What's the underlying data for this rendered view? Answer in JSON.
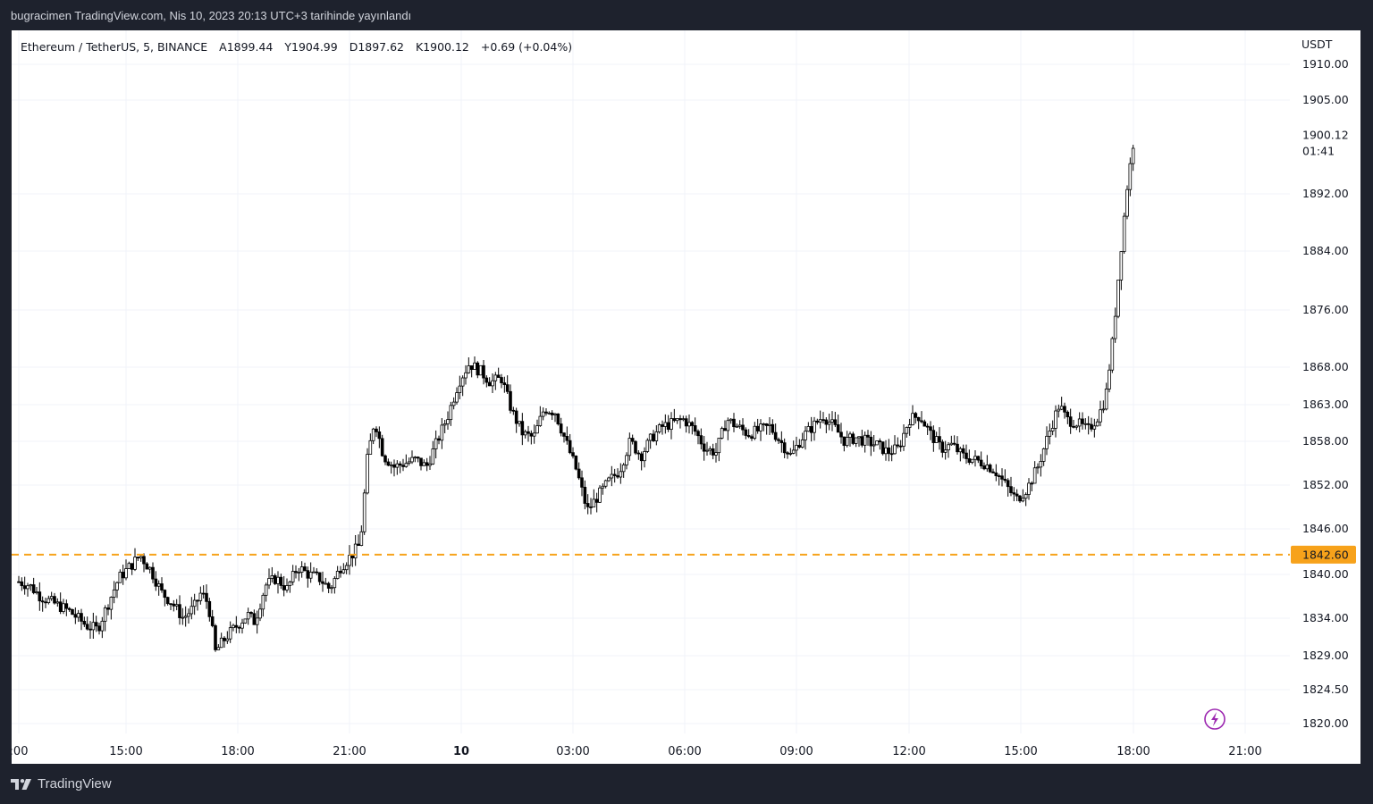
{
  "caption": "bugracimen TradingView.com, Nis 10, 2023 20:13 UTC+3 tarihinde yayınlandı",
  "brand": "TradingView",
  "legend": {
    "symbol": "Ethereum / TetherUS, 5, BINANCE",
    "open": "A1899.44",
    "high": "Y1904.99",
    "low": "D1897.62",
    "close": "K1900.12",
    "change": "+0.69 (+0.04%)"
  },
  "colors": {
    "background": "#1e222d",
    "panel": "#ffffff",
    "candle": "#000000",
    "level_line": "#f7a21b",
    "alert_icon": "#9c27b0"
  },
  "chart_data": {
    "type": "candlestick",
    "title": "Ethereum / TetherUS, 5, BINANCE",
    "currency_label": "USDT",
    "y_axis": {
      "ticks": [
        1910.0,
        1905.0,
        1892.0,
        1884.0,
        1876.0,
        1868.0,
        1863.0,
        1858.0,
        1852.0,
        1846.0,
        1840.0,
        1834.0,
        1829.0,
        1824.5,
        1820.0
      ],
      "tick_labels": [
        "1910.00",
        "1905.00",
        "1892.00",
        "1884.00",
        "1876.00",
        "1868.00",
        "1863.00",
        "1858.00",
        "1852.00",
        "1846.00",
        "1840.00",
        "1834.00",
        "1829.00",
        "1824.50",
        "1820.00"
      ],
      "scale": "log"
    },
    "x_axis": {
      "tick_labels": [
        ":00",
        "15:00",
        "18:00",
        "21:00",
        "10",
        "03:00",
        "06:00",
        "09:00",
        "12:00",
        "15:00",
        "18:00",
        "21:00"
      ],
      "bold_label": "10",
      "range_hours": [
        12.0,
        21.0
      ]
    },
    "current_price": {
      "value": "1900.12",
      "countdown": "01:41"
    },
    "level_line": {
      "value": 1842.6,
      "label": "1842.60",
      "style": "dashed"
    },
    "grid": true,
    "price_path": [
      [
        12.0,
        1839.0
      ],
      [
        12.3,
        1838.5
      ],
      [
        12.6,
        1837.0
      ],
      [
        13.0,
        1836.0
      ],
      [
        13.4,
        1835.0
      ],
      [
        13.9,
        1833.0
      ],
      [
        14.2,
        1832.5
      ],
      [
        14.5,
        1836.0
      ],
      [
        14.8,
        1839.5
      ],
      [
        15.1,
        1841.0
      ],
      [
        15.4,
        1842.5
      ],
      [
        15.7,
        1840.5
      ],
      [
        16.0,
        1837.5
      ],
      [
        16.3,
        1836.0
      ],
      [
        16.6,
        1834.0
      ],
      [
        16.9,
        1835.5
      ],
      [
        17.1,
        1837.5
      ],
      [
        17.3,
        1836.0
      ],
      [
        17.5,
        1829.5
      ],
      [
        17.8,
        1831.5
      ],
      [
        18.1,
        1833.0
      ],
      [
        18.4,
        1834.5
      ],
      [
        18.6,
        1833.5
      ],
      [
        18.9,
        1838.5
      ],
      [
        19.2,
        1839.5
      ],
      [
        19.5,
        1838.0
      ],
      [
        19.8,
        1841.0
      ],
      [
        20.1,
        1840.0
      ],
      [
        20.4,
        1839.5
      ],
      [
        20.7,
        1838.0
      ],
      [
        21.0,
        1841.0
      ],
      [
        21.3,
        1842.5
      ],
      [
        21.55,
        1844.0
      ],
      [
        21.75,
        1855.5
      ],
      [
        21.95,
        1861.0
      ],
      [
        22.2,
        1856.0
      ],
      [
        22.5,
        1854.5
      ],
      [
        22.8,
        1855.0
      ],
      [
        23.1,
        1855.5
      ],
      [
        23.4,
        1854.5
      ],
      [
        23.7,
        1858.0
      ],
      [
        24.0,
        1861.5
      ],
      [
        24.3,
        1866.0
      ],
      [
        24.6,
        1868.5
      ],
      [
        24.9,
        1867.5
      ],
      [
        25.2,
        1866.0
      ],
      [
        25.5,
        1866.5
      ],
      [
        25.8,
        1862.0
      ],
      [
        26.1,
        1859.0
      ],
      [
        26.4,
        1858.5
      ],
      [
        26.7,
        1862.5
      ],
      [
        27.0,
        1862.0
      ],
      [
        27.3,
        1858.0
      ],
      [
        27.6,
        1854.0
      ],
      [
        27.9,
        1848.5
      ],
      [
        28.2,
        1850.5
      ],
      [
        28.5,
        1852.5
      ],
      [
        28.8,
        1854.0
      ],
      [
        29.1,
        1858.0
      ],
      [
        29.4,
        1856.0
      ],
      [
        29.7,
        1858.5
      ],
      [
        30.0,
        1860.0
      ],
      [
        30.3,
        1860.5
      ],
      [
        30.6,
        1861.0
      ],
      [
        30.9,
        1859.5
      ],
      [
        31.2,
        1857.0
      ],
      [
        31.5,
        1856.5
      ],
      [
        31.8,
        1861.0
      ],
      [
        32.1,
        1860.0
      ],
      [
        32.4,
        1859.0
      ],
      [
        32.7,
        1859.5
      ],
      [
        33.0,
        1860.0
      ],
      [
        33.3,
        1858.0
      ],
      [
        33.6,
        1856.0
      ],
      [
        33.9,
        1858.5
      ],
      [
        34.2,
        1860.0
      ],
      [
        34.5,
        1861.5
      ],
      [
        34.8,
        1860.0
      ],
      [
        35.1,
        1858.0
      ],
      [
        35.4,
        1858.5
      ],
      [
        35.7,
        1858.0
      ],
      [
        36.0,
        1857.5
      ],
      [
        36.3,
        1856.5
      ],
      [
        36.6,
        1857.0
      ],
      [
        36.9,
        1861.0
      ],
      [
        37.2,
        1861.5
      ],
      [
        37.5,
        1859.0
      ],
      [
        37.8,
        1857.0
      ],
      [
        38.1,
        1857.5
      ],
      [
        38.4,
        1856.0
      ],
      [
        38.7,
        1855.5
      ],
      [
        39.0,
        1855.0
      ],
      [
        39.3,
        1854.0
      ],
      [
        39.6,
        1852.0
      ],
      [
        39.9,
        1850.0
      ],
      [
        40.2,
        1851.5
      ],
      [
        40.5,
        1854.5
      ],
      [
        40.8,
        1859.0
      ],
      [
        41.1,
        1863.0
      ],
      [
        41.3,
        1861.0
      ],
      [
        41.6,
        1860.5
      ],
      [
        41.9,
        1859.5
      ],
      [
        42.2,
        1861.5
      ],
      [
        42.4,
        1864.0
      ],
      [
        42.6,
        1872.0
      ],
      [
        42.8,
        1883.0
      ],
      [
        43.0,
        1893.0
      ],
      [
        43.2,
        1900.12
      ]
    ]
  }
}
